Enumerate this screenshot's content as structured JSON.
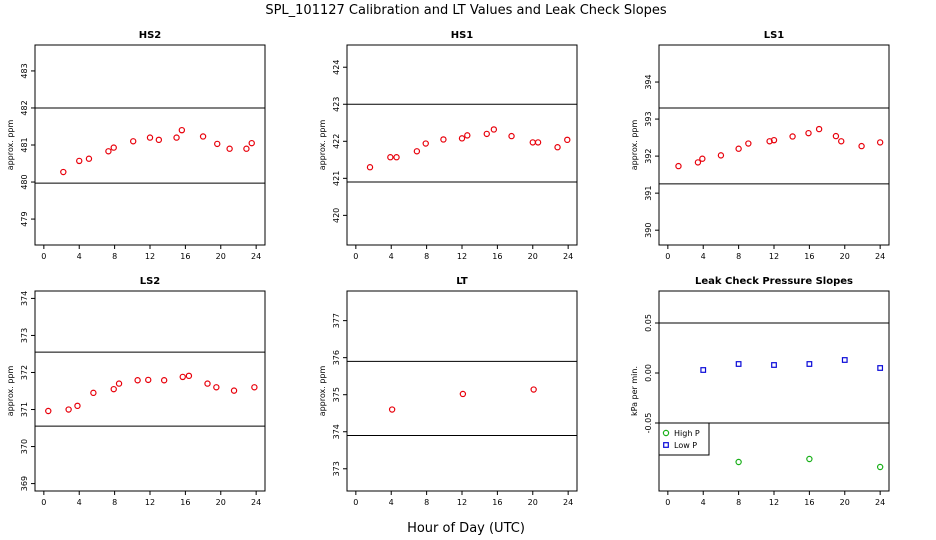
{
  "figure": {
    "title": "SPL_101127  Calibration and LT Values and Leak Check Slopes",
    "xlabel": "Hour of Day (UTC)"
  },
  "colors": {
    "points": "#e8000b",
    "high_p": "#1ab01a",
    "low_p": "#0a0ad8",
    "lines": "#000000"
  },
  "chart_data": [
    {
      "type": "scatter",
      "title": "HS2",
      "ylabel": "approx. ppm",
      "xlim": [
        -1,
        25
      ],
      "ylim": [
        478.3,
        483.7
      ],
      "xticks": [
        0,
        4,
        8,
        12,
        16,
        20,
        24
      ],
      "yticks": [
        479,
        480,
        481,
        482,
        483
      ],
      "hlines": [
        482.0,
        479.97
      ],
      "series": [
        {
          "marker": "o",
          "color": "#e8000b",
          "points": [
            [
              2.2,
              480.27
            ],
            [
              4,
              480.57
            ],
            [
              5.1,
              480.63
            ],
            [
              7.3,
              480.83
            ],
            [
              7.9,
              480.93
            ],
            [
              10.1,
              481.1
            ],
            [
              12,
              481.2
            ],
            [
              13,
              481.14
            ],
            [
              15,
              481.2
            ],
            [
              15.6,
              481.4
            ],
            [
              18,
              481.23
            ],
            [
              19.6,
              481.03
            ],
            [
              21,
              480.9
            ],
            [
              22.9,
              480.9
            ],
            [
              23.5,
              481.05
            ]
          ]
        }
      ]
    },
    {
      "type": "scatter",
      "title": "HS1",
      "ylabel": "approx. ppm",
      "xlim": [
        -1,
        25
      ],
      "ylim": [
        419.2,
        424.6
      ],
      "xticks": [
        0,
        4,
        8,
        12,
        16,
        20,
        24
      ],
      "yticks": [
        420,
        421,
        422,
        423,
        424
      ],
      "hlines": [
        423.0,
        420.9
      ],
      "series": [
        {
          "marker": "o",
          "color": "#e8000b",
          "points": [
            [
              1.6,
              421.3
            ],
            [
              3.9,
              421.57
            ],
            [
              4.6,
              421.57
            ],
            [
              6.9,
              421.73
            ],
            [
              7.9,
              421.94
            ],
            [
              9.9,
              422.05
            ],
            [
              12,
              422.08
            ],
            [
              12.6,
              422.16
            ],
            [
              14.8,
              422.2
            ],
            [
              15.6,
              422.32
            ],
            [
              17.6,
              422.14
            ],
            [
              20,
              421.97
            ],
            [
              20.6,
              421.97
            ],
            [
              22.8,
              421.84
            ],
            [
              23.9,
              422.04
            ]
          ]
        }
      ]
    },
    {
      "type": "scatter",
      "title": "LS1",
      "ylabel": "approx. ppm",
      "xlim": [
        -1,
        25
      ],
      "ylim": [
        389.6,
        395.0
      ],
      "xticks": [
        0,
        4,
        8,
        12,
        16,
        20,
        24
      ],
      "yticks": [
        390,
        391,
        392,
        393,
        394
      ],
      "hlines": [
        393.3,
        391.25
      ],
      "series": [
        {
          "marker": "o",
          "color": "#e8000b",
          "points": [
            [
              1.2,
              391.73
            ],
            [
              3.4,
              391.83
            ],
            [
              3.9,
              391.93
            ],
            [
              6,
              392.02
            ],
            [
              8,
              392.2
            ],
            [
              9.1,
              392.34
            ],
            [
              11.5,
              392.4
            ],
            [
              12,
              392.43
            ],
            [
              14.1,
              392.53
            ],
            [
              15.9,
              392.62
            ],
            [
              17.1,
              392.73
            ],
            [
              19,
              392.54
            ],
            [
              19.6,
              392.4
            ],
            [
              21.9,
              392.27
            ],
            [
              24,
              392.37
            ]
          ]
        }
      ]
    },
    {
      "type": "scatter",
      "title": "LS2",
      "ylabel": "approx. ppm",
      "xlim": [
        -1,
        25
      ],
      "ylim": [
        368.8,
        374.2
      ],
      "xticks": [
        0,
        4,
        8,
        12,
        16,
        20,
        24
      ],
      "yticks": [
        369,
        370,
        371,
        372,
        373,
        374
      ],
      "hlines": [
        372.55,
        370.55
      ],
      "series": [
        {
          "marker": "o",
          "color": "#e8000b",
          "points": [
            [
              0.5,
              370.96
            ],
            [
              2.8,
              371.0
            ],
            [
              3.8,
              371.1
            ],
            [
              5.6,
              371.45
            ],
            [
              7.9,
              371.55
            ],
            [
              8.5,
              371.7
            ],
            [
              10.6,
              371.79
            ],
            [
              11.8,
              371.8
            ],
            [
              13.6,
              371.79
            ],
            [
              15.7,
              371.88
            ],
            [
              16.4,
              371.91
            ],
            [
              18.5,
              371.7
            ],
            [
              19.5,
              371.6
            ],
            [
              21.5,
              371.51
            ],
            [
              23.8,
              371.6
            ]
          ]
        }
      ]
    },
    {
      "type": "scatter",
      "title": "LT",
      "ylabel": "approx. ppm",
      "xlim": [
        -1,
        25
      ],
      "ylim": [
        372.4,
        377.8
      ],
      "xticks": [
        0,
        4,
        8,
        12,
        16,
        20,
        24
      ],
      "yticks": [
        373,
        374,
        375,
        376,
        377
      ],
      "hlines": [
        375.9,
        373.9
      ],
      "series": [
        {
          "marker": "o",
          "color": "#e8000b",
          "points": [
            [
              4.1,
              374.6
            ],
            [
              12.1,
              375.02
            ],
            [
              20.1,
              375.14
            ]
          ]
        }
      ]
    },
    {
      "type": "scatter",
      "title": "Leak Check Pressure Slopes",
      "ylabel": "kPa per min.",
      "xlim": [
        -1,
        25
      ],
      "ylim": [
        -0.118,
        0.082
      ],
      "xticks": [
        0,
        4,
        8,
        12,
        16,
        20,
        24
      ],
      "yticks": [
        -0.05,
        0.0,
        0.05
      ],
      "yticklabels": [
        "-0.05",
        "0.00",
        "0.05"
      ],
      "hlines": [
        0.05,
        -0.05
      ],
      "legend": {
        "position": "bottom-left",
        "entries": [
          "High P",
          "Low P"
        ]
      },
      "series": [
        {
          "name": "High P",
          "marker": "o",
          "color": "#1ab01a",
          "points": [
            [
              8,
              -0.089
            ],
            [
              16,
              -0.086
            ],
            [
              24,
              -0.094
            ]
          ]
        },
        {
          "name": "Low P",
          "marker": "square",
          "color": "#0a0ad8",
          "points": [
            [
              4,
              0.003
            ],
            [
              8,
              0.009
            ],
            [
              12,
              0.008
            ],
            [
              16,
              0.009
            ],
            [
              20,
              0.013
            ],
            [
              24,
              0.005
            ]
          ]
        }
      ]
    }
  ]
}
